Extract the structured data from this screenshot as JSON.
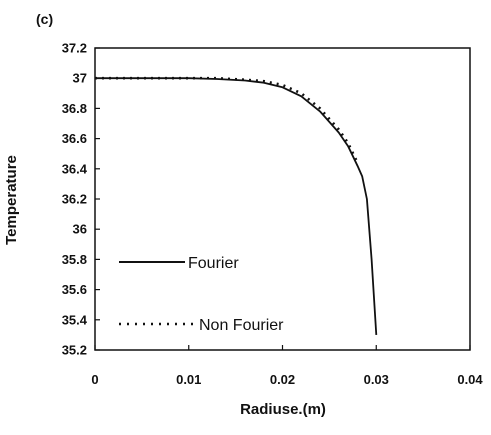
{
  "chart_data": {
    "type": "line",
    "panel_label": "(c)",
    "xlabel": "Radiuse.(m)",
    "ylabel": "Temperature",
    "xlim": [
      0,
      0.04
    ],
    "ylim": [
      35.2,
      37.2
    ],
    "x_tick_labels": [
      "0",
      "0.01",
      "0.02",
      "0.03",
      "0.04"
    ],
    "y_tick_labels": [
      "37.2",
      "37",
      "36.8",
      "36.6",
      "36.4",
      "36.2",
      "36",
      "35.8",
      "35.6",
      "35.4",
      "35.2"
    ],
    "grid": false,
    "legend_position": "lower-left",
    "series": [
      {
        "name": "Fourier",
        "style": "solid",
        "color": "#111111",
        "x": [
          0,
          0.005,
          0.01,
          0.013,
          0.016,
          0.018,
          0.02,
          0.022,
          0.024,
          0.026,
          0.027,
          0.028,
          0.0285,
          0.029,
          0.0295,
          0.03
        ],
        "y": [
          37.0,
          37.0,
          37.0,
          36.995,
          36.985,
          36.97,
          36.94,
          36.88,
          36.78,
          36.64,
          36.55,
          36.42,
          36.35,
          36.2,
          35.8,
          35.3
        ]
      },
      {
        "name": "Non Fourier",
        "style": "dotted",
        "color": "#111111",
        "x": [
          0,
          0.005,
          0.01,
          0.013,
          0.016,
          0.018,
          0.02,
          0.022,
          0.024,
          0.026,
          0.027,
          0.028
        ],
        "y": [
          37.0,
          37.0,
          37.0,
          37.0,
          36.99,
          36.98,
          36.955,
          36.9,
          36.8,
          36.66,
          36.57,
          36.44
        ]
      }
    ]
  }
}
